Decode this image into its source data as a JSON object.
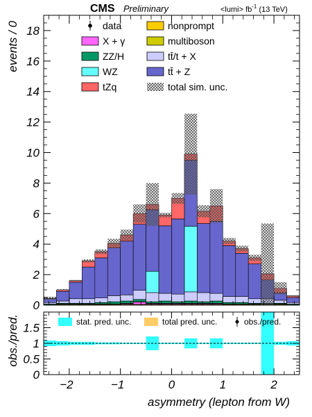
{
  "header": {
    "experiment": "CMS",
    "status": "Preliminary",
    "lumi": "<lumi> fb",
    "lumi_exp": "-1",
    "energy": "(13 TeV)"
  },
  "colors": {
    "nonprompt": "#ffcc00",
    "X + γ": "#ff66ff",
    "multiboson": "#cccc00",
    "ZZ/H": "#009966",
    "tt̄/t + X": "#ccccff",
    "WZ": "#66ffff",
    "tt̄ + Z": "#6666cc",
    "tZq": "#ff6666",
    "stat_band": "#33ffff",
    "total_band": "#ffcc66"
  },
  "chart_data": [
    {
      "type": "stacked-histogram",
      "xlabel": "asymmetry (lepton from W)",
      "ylabel": "events / 0",
      "xlim": [
        -2.5,
        2.5
      ],
      "ylim": [
        0,
        19
      ],
      "yticks": [
        0,
        2,
        4,
        6,
        8,
        10,
        12,
        14,
        16,
        18
      ],
      "xticks": [
        -2,
        -1,
        0,
        1,
        2
      ],
      "bin_edges": [
        -2.5,
        -2.25,
        -2.0,
        -1.75,
        -1.5,
        -1.25,
        -1.0,
        -0.75,
        -0.5,
        -0.25,
        0.0,
        0.25,
        0.5,
        0.75,
        1.0,
        1.25,
        1.5,
        1.75,
        2.0,
        2.25,
        2.5
      ],
      "series": [
        {
          "name": "nonprompt",
          "values": [
            0.02,
            0.05,
            0.05,
            0.05,
            0.05,
            0.05,
            0.05,
            0.05,
            0.05,
            0.05,
            0.05,
            0.05,
            0.05,
            0.05,
            0.05,
            0.05,
            0.05,
            0.05,
            0.05,
            0.02
          ]
        },
        {
          "name": "X + γ",
          "values": [
            0.0,
            0.0,
            0.0,
            0.0,
            0.0,
            0.0,
            0.05,
            0.15,
            0.05,
            0.05,
            0.05,
            0.05,
            0.05,
            0.05,
            0.0,
            0.0,
            0.0,
            0.0,
            0.0,
            0.0
          ]
        },
        {
          "name": "multiboson",
          "values": [
            0.0,
            0.02,
            0.02,
            0.02,
            0.02,
            0.02,
            0.02,
            0.02,
            0.02,
            0.02,
            0.02,
            0.02,
            0.02,
            0.02,
            0.02,
            0.02,
            0.02,
            0.02,
            0.02,
            0.0
          ]
        },
        {
          "name": "ZZ/H",
          "values": [
            0.05,
            0.05,
            0.05,
            0.05,
            0.1,
            0.15,
            0.15,
            0.15,
            0.1,
            0.15,
            0.1,
            0.15,
            0.1,
            0.15,
            0.1,
            0.1,
            0.05,
            0.05,
            0.05,
            0.05
          ]
        },
        {
          "name": "tt̄/t + X",
          "values": [
            0.1,
            0.15,
            0.3,
            0.3,
            0.3,
            0.4,
            0.4,
            0.6,
            0.6,
            0.5,
            0.5,
            0.6,
            0.6,
            0.5,
            0.4,
            0.4,
            0.3,
            0.3,
            0.2,
            0.1
          ]
        },
        {
          "name": "WZ",
          "values": [
            0.0,
            0.0,
            0.0,
            0.0,
            0.0,
            0.0,
            0.0,
            0.0,
            1.4,
            0.0,
            0.0,
            4.3,
            0.0,
            0.0,
            0.0,
            0.0,
            0.0,
            0.0,
            0.0,
            0.0
          ]
        },
        {
          "name": "tt̄ + Z",
          "values": [
            0.25,
            0.63,
            1.08,
            2.08,
            2.63,
            3.13,
            3.53,
            4.33,
            4.03,
            4.43,
            4.93,
            4.33,
            4.53,
            4.73,
            3.33,
            2.83,
            2.28,
            1.23,
            0.48,
            0.33
          ]
        },
        {
          "name": "tZq",
          "values": [
            0.03,
            0.1,
            0.1,
            0.4,
            0.4,
            0.3,
            0.4,
            0.7,
            0.35,
            0.7,
            1.35,
            0.4,
            0.8,
            1.0,
            0.3,
            0.3,
            0.4,
            0.4,
            0.3,
            0.1
          ]
        }
      ],
      "data": {
        "name": "data",
        "values": []
      },
      "totals": [
        0.45,
        1.0,
        1.6,
        2.9,
        3.5,
        4.05,
        4.6,
        6.0,
        6.6,
        5.9,
        7.0,
        9.9,
        6.15,
        6.5,
        4.2,
        3.7,
        3.1,
        2.05,
        1.1,
        0.6
      ],
      "unc_top": [
        0.55,
        1.05,
        1.65,
        3.0,
        3.65,
        4.35,
        4.95,
        6.6,
        8.0,
        6.05,
        7.35,
        12.55,
        6.55,
        7.6,
        4.4,
        3.9,
        3.3,
        5.35,
        1.5,
        0.65
      ],
      "unc_bottom": [
        0.35,
        0.95,
        1.55,
        2.8,
        3.35,
        3.75,
        4.25,
        5.4,
        5.2,
        5.75,
        6.65,
        7.25,
        5.75,
        5.4,
        4.0,
        3.5,
        2.9,
        0.0,
        0.7,
        0.55
      ],
      "legend": {
        "placement": "top",
        "entries": [
          {
            "label": "data",
            "kind": "marker"
          },
          {
            "label": "nonprompt",
            "kind": "fill",
            "series": "nonprompt"
          },
          {
            "label": "X + γ",
            "kind": "fill",
            "series": "X + γ"
          },
          {
            "label": "multiboson",
            "kind": "fill",
            "series": "multiboson"
          },
          {
            "label": "ZZ/H",
            "kind": "fill",
            "series": "ZZ/H"
          },
          {
            "label": "tt̄/t + X",
            "kind": "fill",
            "series": "tt̄/t + X"
          },
          {
            "label": "WZ",
            "kind": "fill",
            "series": "WZ"
          },
          {
            "label": "tt̄ + Z",
            "kind": "fill",
            "series": "tt̄ + Z"
          },
          {
            "label": "tZq",
            "kind": "fill",
            "series": "tZq"
          },
          {
            "label": "total sim. unc.",
            "kind": "hatch"
          }
        ]
      }
    },
    {
      "type": "ratio",
      "xlabel": "asymmetry (lepton from W)",
      "ylabel": "obs./pred.",
      "xlim": [
        -2.5,
        2.5
      ],
      "ylim": [
        0,
        2
      ],
      "yticks": [
        0,
        0.5,
        1,
        1.5
      ],
      "ytick_labels": [
        "0",
        "0.5",
        "1",
        "1.5"
      ],
      "xticks": [
        -2,
        -1,
        0,
        1,
        2
      ],
      "stat_band_low": [
        0.91,
        0.93,
        0.95,
        0.95,
        0.97,
        0.97,
        0.98,
        0.98,
        0.78,
        0.98,
        0.98,
        0.84,
        0.98,
        0.84,
        0.98,
        0.98,
        0.98,
        0.0,
        0.95,
        0.93
      ],
      "stat_band_high": [
        1.09,
        1.07,
        1.05,
        1.05,
        1.03,
        1.03,
        1.02,
        1.02,
        1.22,
        1.02,
        1.02,
        1.16,
        1.02,
        1.16,
        1.02,
        1.02,
        1.02,
        2.0,
        1.05,
        1.07
      ],
      "reference": 1,
      "legend": [
        "stat. pred. unc.",
        "total pred. unc.",
        "obs./pred."
      ]
    }
  ]
}
